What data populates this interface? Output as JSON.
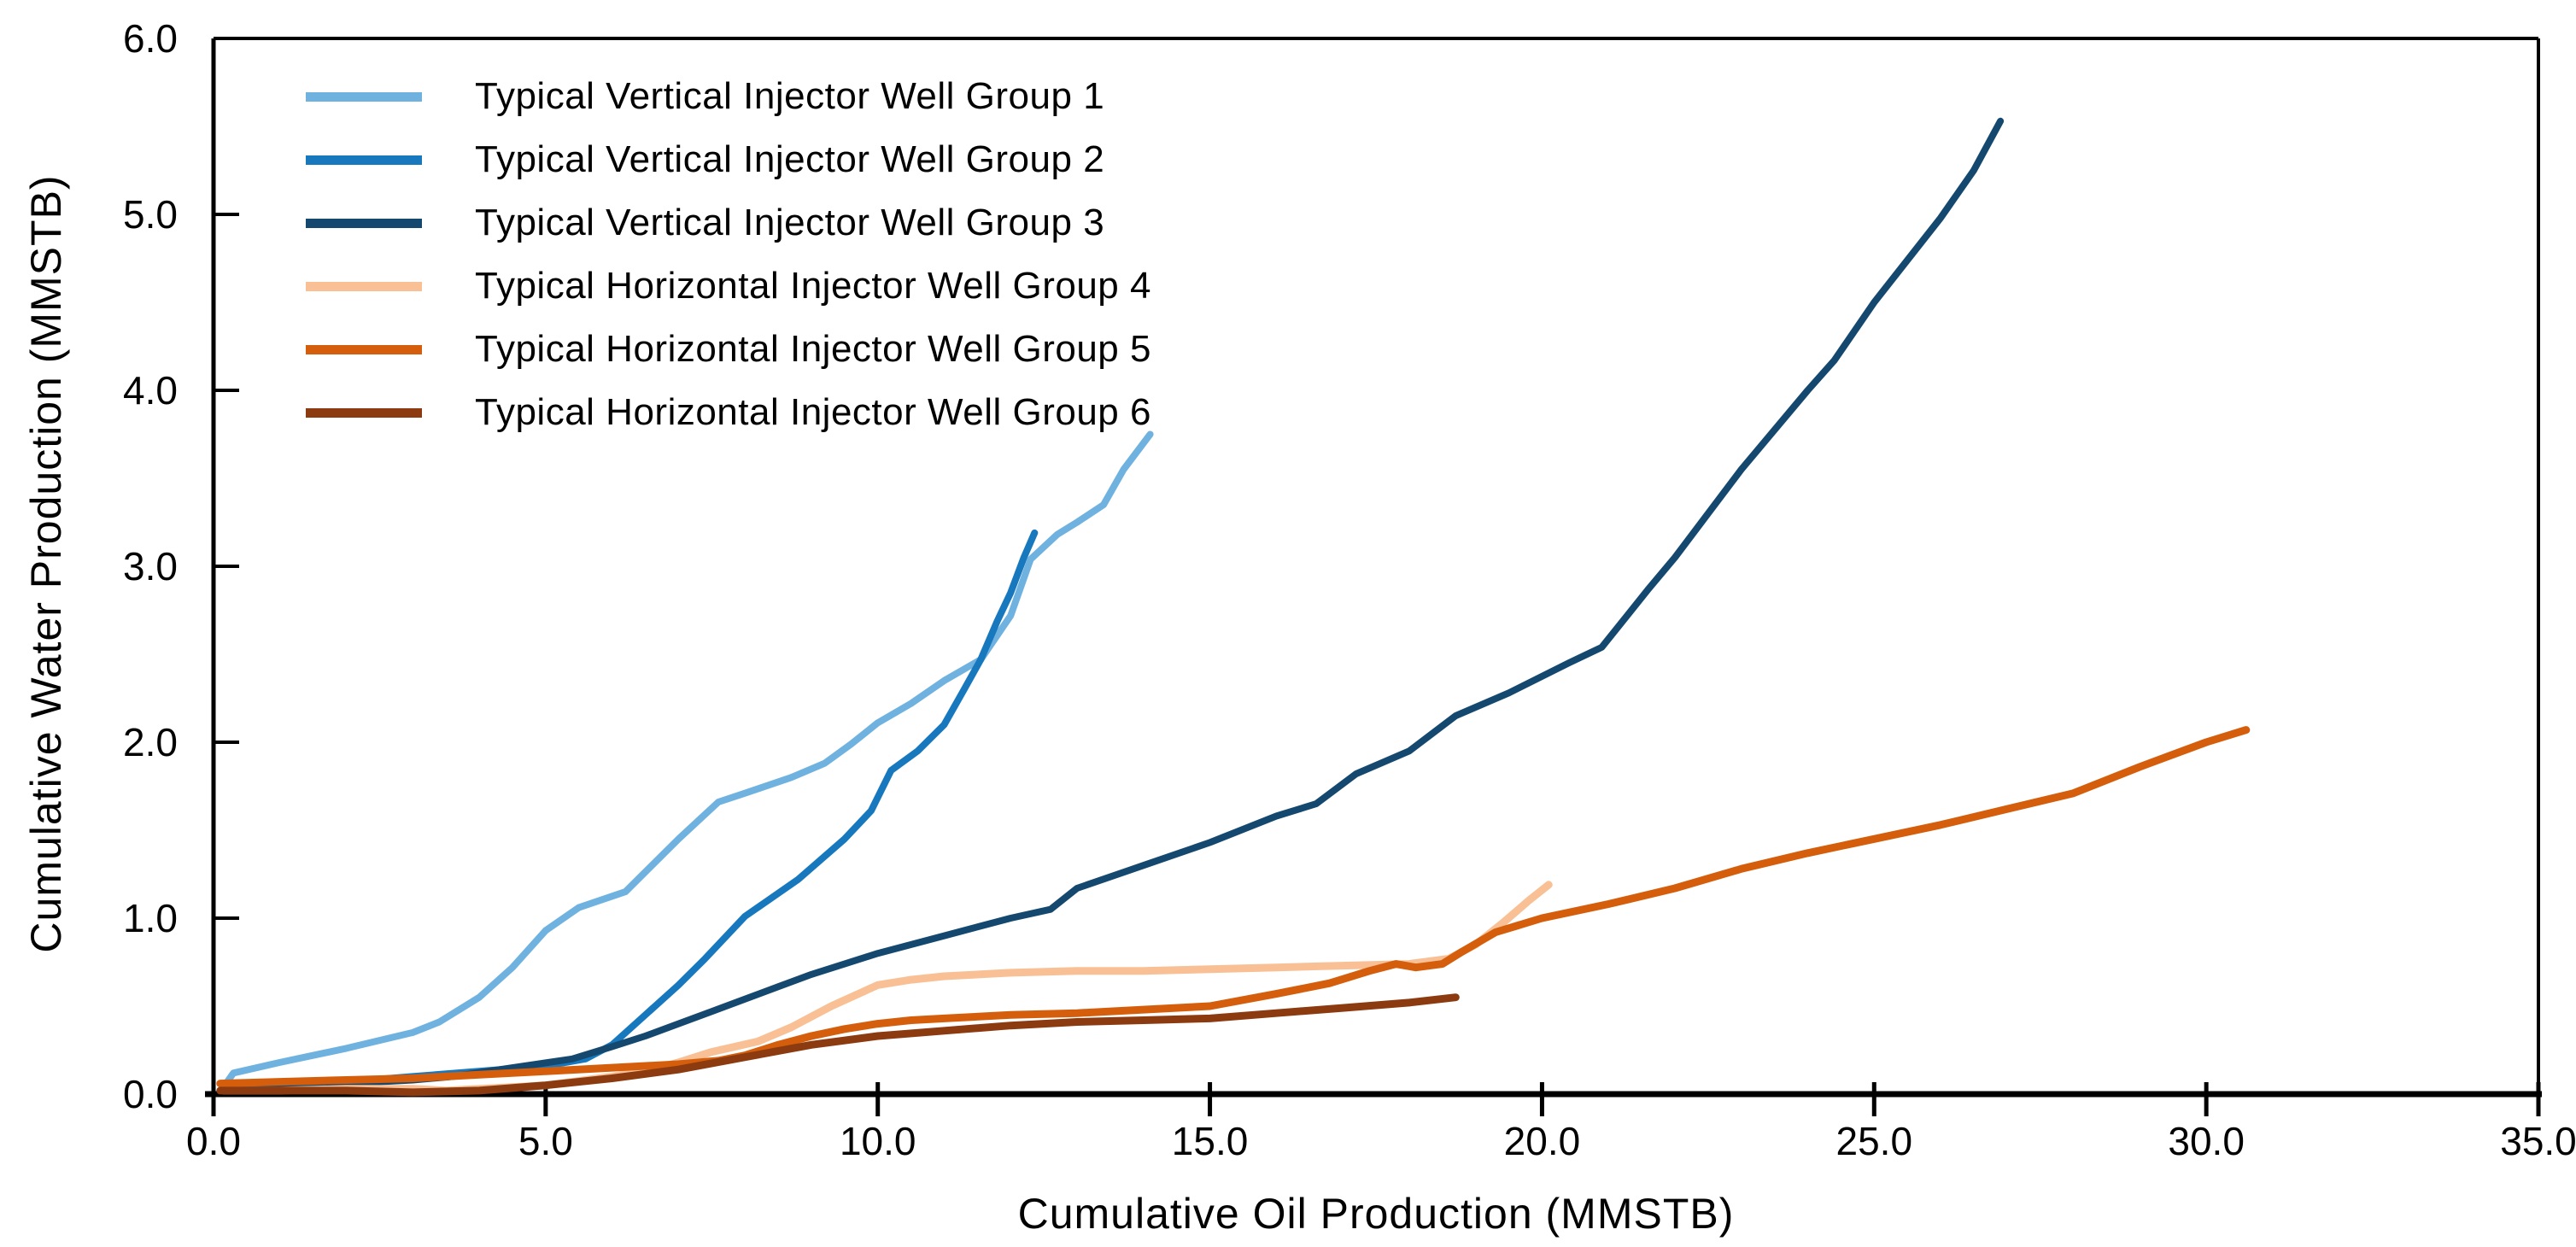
{
  "chart_data": {
    "type": "line",
    "title": "",
    "xlabel": "Cumulative Oil Production (MMSTB)",
    "ylabel": "Cumulative Water Production (MMSTB)",
    "xlim": [
      0,
      35
    ],
    "ylim": [
      0,
      6
    ],
    "grid": false,
    "background": "#ffffff",
    "axis_color": "#000000",
    "legend_position": "upper-left-inside",
    "xticks": {
      "values": [
        0,
        5,
        10,
        15,
        20,
        25,
        30,
        35
      ],
      "labels": [
        "0.0",
        "5.0",
        "10.0",
        "15.0",
        "20.0",
        "25.0",
        "30.0",
        "35.0"
      ]
    },
    "yticks": {
      "values": [
        0,
        1,
        2,
        3,
        4,
        5,
        6
      ],
      "labels": [
        "0.0",
        "1.0",
        "2.0",
        "3.0",
        "4.0",
        "5.0",
        "6.0"
      ]
    },
    "series": [
      {
        "name": "Typical Vertical Injector Well Group 1",
        "color": "#6FB2E0",
        "width": 8,
        "points": [
          [
            0.15,
            0.04
          ],
          [
            0.3,
            0.12
          ],
          [
            1,
            0.18
          ],
          [
            2,
            0.26
          ],
          [
            3,
            0.35
          ],
          [
            3.4,
            0.41
          ],
          [
            4,
            0.55
          ],
          [
            4.5,
            0.72
          ],
          [
            5,
            0.93
          ],
          [
            5.5,
            1.06
          ],
          [
            6.2,
            1.15
          ],
          [
            7,
            1.45
          ],
          [
            7.6,
            1.66
          ],
          [
            8,
            1.71
          ],
          [
            8.7,
            1.8
          ],
          [
            9.2,
            1.88
          ],
          [
            9.6,
            1.99
          ],
          [
            10,
            2.11
          ],
          [
            10.5,
            2.22
          ],
          [
            11,
            2.35
          ],
          [
            11.55,
            2.47
          ],
          [
            12,
            2.72
          ],
          [
            12.3,
            3.04
          ],
          [
            12.7,
            3.18
          ],
          [
            13,
            3.25
          ],
          [
            13.4,
            3.35
          ],
          [
            13.7,
            3.55
          ],
          [
            14.1,
            3.75
          ]
        ]
      },
      {
        "name": "Typical Vertical Injector Well Group 2",
        "color": "#1878BE",
        "width": 8,
        "points": [
          [
            0.15,
            0.03
          ],
          [
            1,
            0.05
          ],
          [
            2,
            0.07
          ],
          [
            3,
            0.1
          ],
          [
            4,
            0.13
          ],
          [
            5,
            0.16
          ],
          [
            5.6,
            0.2
          ],
          [
            6,
            0.28
          ],
          [
            6.5,
            0.45
          ],
          [
            7,
            0.62
          ],
          [
            7.4,
            0.77
          ],
          [
            8,
            1.01
          ],
          [
            8.8,
            1.22
          ],
          [
            9.5,
            1.45
          ],
          [
            9.9,
            1.61
          ],
          [
            10.2,
            1.84
          ],
          [
            10.6,
            1.95
          ],
          [
            11,
            2.1
          ],
          [
            11.3,
            2.3
          ],
          [
            11.55,
            2.47
          ],
          [
            11.8,
            2.69
          ],
          [
            12,
            2.85
          ],
          [
            12.2,
            3.05
          ],
          [
            12.36,
            3.19
          ]
        ]
      },
      {
        "name": "Typical Vertical Injector Well Group 3",
        "color": "#14486F",
        "width": 8,
        "points": [
          [
            0.15,
            0.02
          ],
          [
            1,
            0.04
          ],
          [
            2,
            0.06
          ],
          [
            3,
            0.08
          ],
          [
            3.6,
            0.1
          ],
          [
            4.5,
            0.15
          ],
          [
            5.4,
            0.2
          ],
          [
            6,
            0.27
          ],
          [
            6.5,
            0.33
          ],
          [
            7,
            0.4
          ],
          [
            7.5,
            0.47
          ],
          [
            8,
            0.54
          ],
          [
            8.5,
            0.61
          ],
          [
            9,
            0.68
          ],
          [
            9.5,
            0.74
          ],
          [
            10,
            0.8
          ],
          [
            11,
            0.9
          ],
          [
            12,
            1.0
          ],
          [
            12.6,
            1.05
          ],
          [
            13,
            1.17
          ],
          [
            14,
            1.3
          ],
          [
            15,
            1.43
          ],
          [
            16,
            1.58
          ],
          [
            16.6,
            1.65
          ],
          [
            17.2,
            1.82
          ],
          [
            18,
            1.95
          ],
          [
            18.7,
            2.15
          ],
          [
            19.5,
            2.28
          ],
          [
            20.4,
            2.45
          ],
          [
            20.9,
            2.54
          ],
          [
            21.6,
            2.87
          ],
          [
            22,
            3.05
          ],
          [
            23,
            3.55
          ],
          [
            24,
            4.0
          ],
          [
            24.4,
            4.17
          ],
          [
            25,
            4.5
          ],
          [
            26,
            4.98
          ],
          [
            26.5,
            5.25
          ],
          [
            26.9,
            5.53
          ]
        ]
      },
      {
        "name": "Typical Horizontal Injector Well Group 4",
        "color": "#F8C094",
        "width": 9,
        "points": [
          [
            0.15,
            0.02
          ],
          [
            1,
            0.02
          ],
          [
            2,
            0.03
          ],
          [
            3,
            0.03
          ],
          [
            3.5,
            0.02
          ],
          [
            4,
            0.03
          ],
          [
            5,
            0.05
          ],
          [
            6,
            0.1
          ],
          [
            6.5,
            0.13
          ],
          [
            7,
            0.18
          ],
          [
            7.5,
            0.24
          ],
          [
            8.2,
            0.3
          ],
          [
            8.7,
            0.38
          ],
          [
            9.3,
            0.5
          ],
          [
            10,
            0.62
          ],
          [
            10.5,
            0.65
          ],
          [
            11,
            0.67
          ],
          [
            12,
            0.69
          ],
          [
            13,
            0.7
          ],
          [
            14,
            0.7
          ],
          [
            15,
            0.71
          ],
          [
            16,
            0.72
          ],
          [
            17,
            0.73
          ],
          [
            18,
            0.74
          ],
          [
            18.6,
            0.77
          ],
          [
            19,
            0.85
          ],
          [
            19.4,
            0.97
          ],
          [
            19.8,
            1.1
          ],
          [
            20.1,
            1.19
          ]
        ]
      },
      {
        "name": "Typical Horizontal Injector Well Group 5",
        "color": "#D55E0D",
        "width": 9,
        "points": [
          [
            0.1,
            0.06
          ],
          [
            1,
            0.07
          ],
          [
            2,
            0.08
          ],
          [
            3,
            0.09
          ],
          [
            4,
            0.11
          ],
          [
            5,
            0.13
          ],
          [
            6,
            0.15
          ],
          [
            7,
            0.17
          ],
          [
            7.6,
            0.19
          ],
          [
            8,
            0.22
          ],
          [
            8.5,
            0.28
          ],
          [
            9,
            0.33
          ],
          [
            9.5,
            0.37
          ],
          [
            10,
            0.4
          ],
          [
            10.5,
            0.42
          ],
          [
            11,
            0.43
          ],
          [
            12,
            0.45
          ],
          [
            13,
            0.46
          ],
          [
            14,
            0.48
          ],
          [
            15,
            0.5
          ],
          [
            16,
            0.57
          ],
          [
            16.8,
            0.63
          ],
          [
            17.4,
            0.7
          ],
          [
            17.8,
            0.74
          ],
          [
            18.1,
            0.72
          ],
          [
            18.5,
            0.74
          ],
          [
            18.8,
            0.81
          ],
          [
            19.3,
            0.92
          ],
          [
            20,
            1.0
          ],
          [
            21,
            1.08
          ],
          [
            22,
            1.17
          ],
          [
            23,
            1.28
          ],
          [
            24,
            1.37
          ],
          [
            25,
            1.45
          ],
          [
            26,
            1.53
          ],
          [
            27,
            1.62
          ],
          [
            28,
            1.71
          ],
          [
            29,
            1.86
          ],
          [
            30,
            2.0
          ],
          [
            30.6,
            2.07
          ]
        ]
      },
      {
        "name": "Typical Horizontal Injector Well Group 6",
        "color": "#8C3A10",
        "width": 9,
        "points": [
          [
            0.1,
            0.02
          ],
          [
            1,
            0.02
          ],
          [
            2,
            0.02
          ],
          [
            3,
            0.01
          ],
          [
            4,
            0.02
          ],
          [
            5,
            0.05
          ],
          [
            6,
            0.09
          ],
          [
            7,
            0.14
          ],
          [
            8,
            0.21
          ],
          [
            9,
            0.28
          ],
          [
            10,
            0.33
          ],
          [
            11,
            0.36
          ],
          [
            12,
            0.39
          ],
          [
            13,
            0.41
          ],
          [
            14,
            0.42
          ],
          [
            15,
            0.43
          ],
          [
            16,
            0.46
          ],
          [
            17,
            0.49
          ],
          [
            18,
            0.52
          ],
          [
            18.7,
            0.55
          ]
        ]
      }
    ]
  }
}
